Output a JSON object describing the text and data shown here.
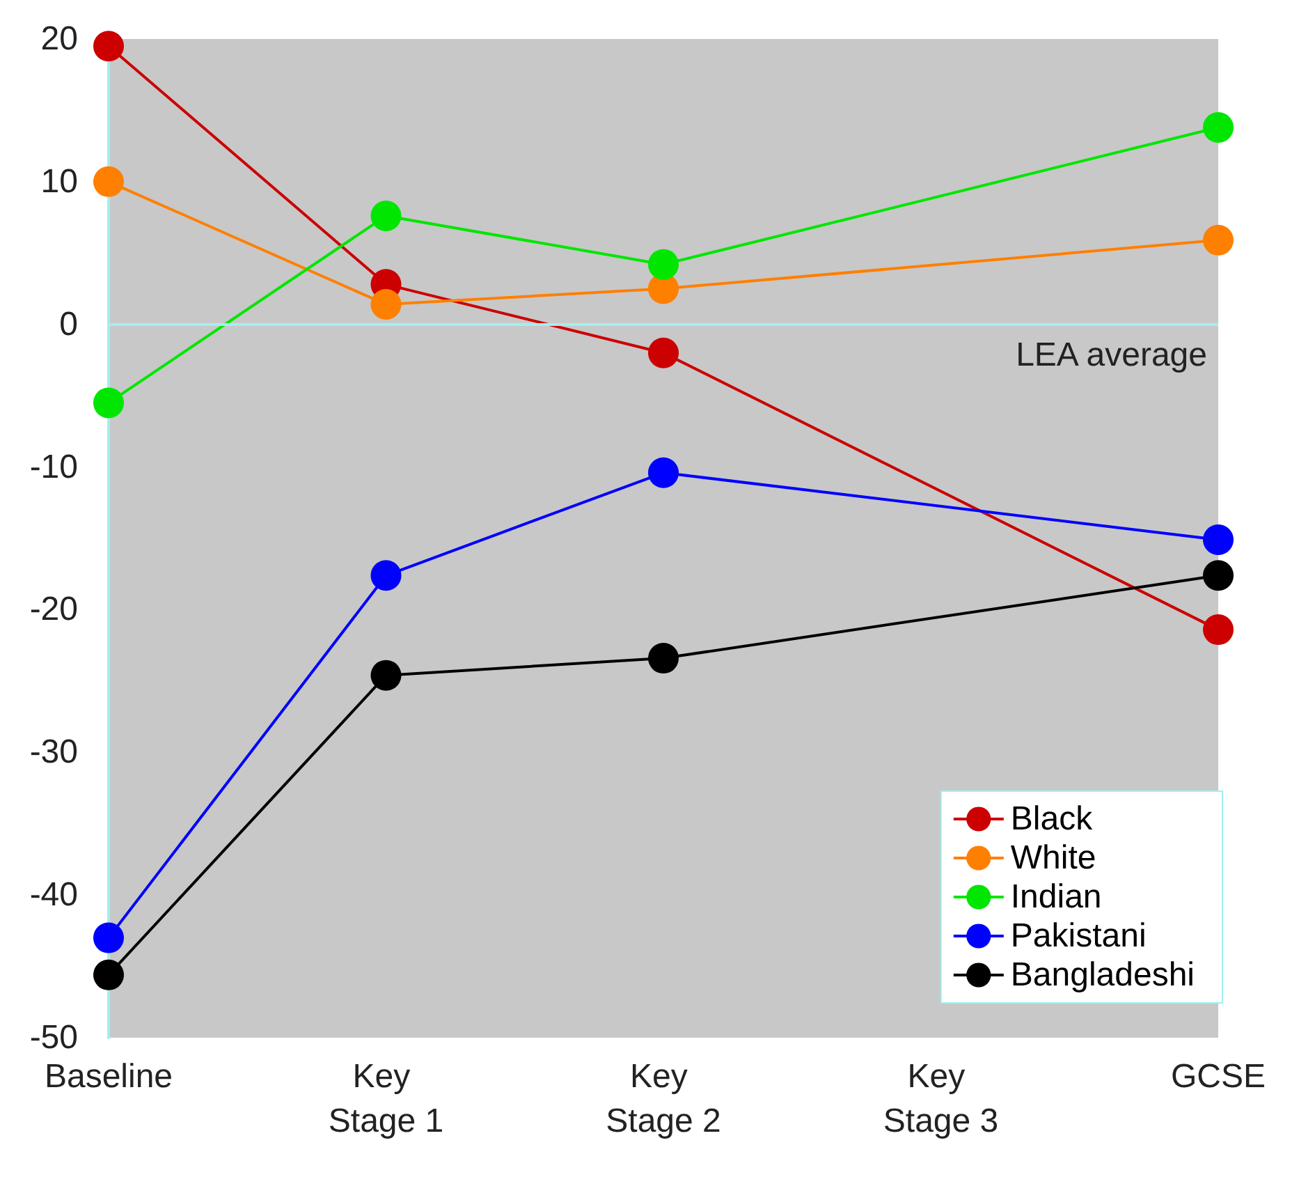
{
  "chart_data": {
    "type": "line",
    "categories": [
      "Baseline",
      "Key Stage 1",
      "Key Stage 2",
      "Key Stage 3",
      "GCSE"
    ],
    "series": [
      {
        "name": "Black",
        "color": "#cc0000",
        "values": [
          19.5,
          2.8,
          -2,
          null,
          -21.4
        ]
      },
      {
        "name": "White",
        "color": "#ff7f00",
        "values": [
          10,
          1.4,
          2.5,
          null,
          5.9
        ]
      },
      {
        "name": "Indian",
        "color": "#00e600",
        "values": [
          -5.5,
          7.6,
          4.2,
          null,
          13.8
        ]
      },
      {
        "name": "Pakistani",
        "color": "#0000ff",
        "values": [
          -43,
          -17.6,
          -10.4,
          null,
          -15.1
        ]
      },
      {
        "name": "Bangladeshi",
        "color": "#000000",
        "values": [
          -45.6,
          -24.6,
          -23.4,
          null,
          -17.6
        ]
      }
    ],
    "ylim": [
      -50,
      20
    ],
    "yticks": [
      -50,
      -40,
      -30,
      -20,
      -10,
      0,
      10,
      20
    ],
    "ref_lines": [
      {
        "axis": "y",
        "value": 0,
        "label": "LEA average",
        "color": "#a0f0f0"
      }
    ],
    "grid": false,
    "legend": "bottom right",
    "marker": "circle",
    "line_style": "solid"
  }
}
